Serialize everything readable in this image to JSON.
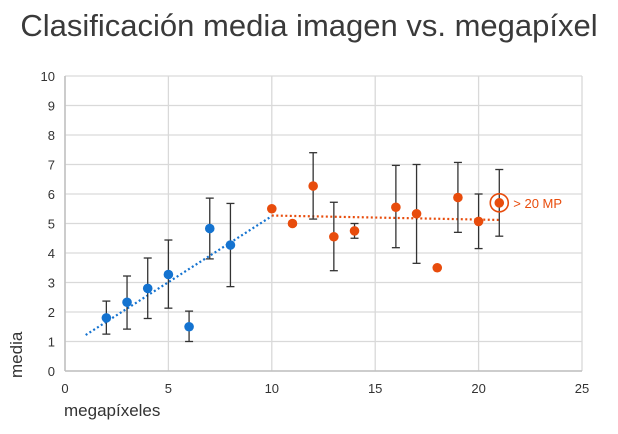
{
  "chart_data": {
    "type": "scatter",
    "title": "Clasificación media imagen vs. megapíxel",
    "xlabel": "megapíxeles",
    "ylabel": "media",
    "xlim": [
      0,
      25
    ],
    "ylim": [
      0,
      10
    ],
    "xticks": [
      0,
      5,
      10,
      15,
      20,
      25
    ],
    "yticks": [
      0,
      1,
      2,
      3,
      4,
      5,
      6,
      7,
      8,
      9,
      10
    ],
    "grid": true,
    "colors": {
      "blue": "#1473d0",
      "orange": "#e84c0c",
      "errorbar": "#333333"
    },
    "series": [
      {
        "color": "#1473d0",
        "points": [
          {
            "x": 2,
            "y": 1.8,
            "err_low": 1.25,
            "err_high": 2.37
          },
          {
            "x": 3,
            "y": 2.33,
            "err_low": 1.42,
            "err_high": 3.22
          },
          {
            "x": 4,
            "y": 2.8,
            "err_low": 1.78,
            "err_high": 3.83
          },
          {
            "x": 5,
            "y": 3.27,
            "err_low": 2.13,
            "err_high": 4.44
          },
          {
            "x": 6,
            "y": 1.5,
            "err_low": 1.0,
            "err_high": 2.03
          },
          {
            "x": 7,
            "y": 4.83,
            "err_low": 3.8,
            "err_high": 5.86
          },
          {
            "x": 8,
            "y": 4.27,
            "err_low": 2.86,
            "err_high": 5.68
          }
        ],
        "trendline": {
          "from": [
            1,
            1.22
          ],
          "to": [
            10,
            5.25
          ]
        }
      },
      {
        "color": "#e84c0c",
        "points": [
          {
            "x": 10,
            "y": 5.5
          },
          {
            "x": 11,
            "y": 5.0
          },
          {
            "x": 12,
            "y": 6.27,
            "err_low": 5.15,
            "err_high": 7.4
          },
          {
            "x": 13,
            "y": 4.55,
            "err_low": 3.4,
            "err_high": 5.72
          },
          {
            "x": 14,
            "y": 4.75,
            "err_low": 4.5,
            "err_high": 5.0
          },
          {
            "x": 16,
            "y": 5.55,
            "err_low": 4.18,
            "err_high": 6.97
          },
          {
            "x": 17,
            "y": 5.33,
            "err_low": 3.65,
            "err_high": 7.0
          },
          {
            "x": 18,
            "y": 3.5
          },
          {
            "x": 19,
            "y": 5.88,
            "err_low": 4.7,
            "err_high": 7.07
          },
          {
            "x": 20,
            "y": 5.07,
            "err_low": 4.15,
            "err_high": 6.0
          },
          {
            "x": 21,
            "y": 5.7,
            "err_low": 4.57,
            "err_high": 6.83
          }
        ],
        "trendline": {
          "from": [
            10,
            5.27
          ],
          "to": [
            21,
            5.12
          ]
        }
      }
    ],
    "annotations": [
      {
        "text": "> 20 MP",
        "x": 21,
        "y": 5.7
      }
    ]
  }
}
